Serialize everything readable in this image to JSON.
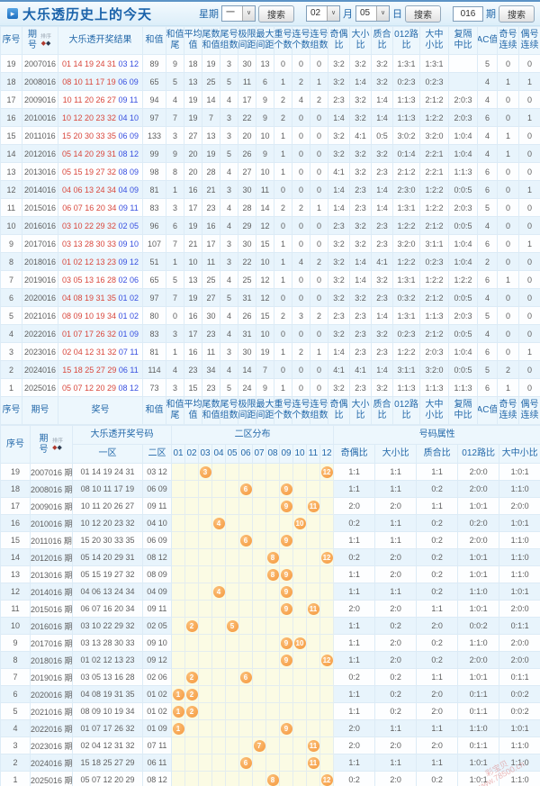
{
  "title": "大乐透历史上的今天",
  "sort_label": "排序",
  "controls": {
    "week_label": "星期",
    "week_value": "一",
    "month_value": "02",
    "month_label": "月",
    "day_value": "05",
    "day_label": "日",
    "issue_value": "016",
    "issue_label": "期",
    "search_label": "搜索"
  },
  "colors": {
    "accent": "#2368A9",
    "red_number": "#D9473C",
    "blue_number": "#3850E0",
    "ball_orange": "#F5973C",
    "dist_bg": "#FBFBE4",
    "header_bg": "#EDF7FD",
    "row_alt": "#E8F4FC"
  },
  "table1": {
    "headers": [
      {
        "lines": [
          "序号"
        ]
      },
      {
        "lines": [
          "期",
          "号"
        ],
        "sort": true
      },
      {
        "lines": [
          "大乐透开奖结果"
        ]
      },
      {
        "lines": [
          "和值"
        ]
      },
      {
        "lines": [
          "和值",
          "尾"
        ]
      },
      {
        "lines": [
          "平均",
          "值"
        ]
      },
      {
        "lines": [
          "尾数",
          "和值"
        ]
      },
      {
        "lines": [
          "尾号",
          "组数"
        ]
      },
      {
        "lines": [
          "极限",
          "间距"
        ]
      },
      {
        "lines": [
          "最大",
          "间距"
        ]
      },
      {
        "lines": [
          "重号",
          "个数"
        ]
      },
      {
        "lines": [
          "连号",
          "个数"
        ]
      },
      {
        "lines": [
          "连号",
          "组数"
        ]
      },
      {
        "lines": [
          "奇偶",
          "比"
        ]
      },
      {
        "lines": [
          "大小",
          "比"
        ]
      },
      {
        "lines": [
          "质合",
          "比"
        ]
      },
      {
        "lines": [
          "012路",
          "比"
        ]
      },
      {
        "lines": [
          "大中",
          "小比"
        ]
      },
      {
        "lines": [
          "复隔",
          "中比"
        ]
      },
      {
        "lines": [
          "AC值"
        ]
      },
      {
        "lines": [
          "奇号",
          "连续"
        ]
      },
      {
        "lines": [
          "偶号",
          "连续"
        ]
      }
    ],
    "footer_headers": [
      {
        "lines": [
          "序号"
        ]
      },
      {
        "lines": [
          "期号"
        ]
      },
      {
        "lines": [
          "奖号"
        ]
      },
      {
        "lines": [
          "和值"
        ]
      },
      {
        "lines": [
          "和值",
          "尾"
        ]
      },
      {
        "lines": [
          "平均",
          "值"
        ]
      },
      {
        "lines": [
          "尾数",
          "和值"
        ]
      },
      {
        "lines": [
          "尾号",
          "组数"
        ]
      },
      {
        "lines": [
          "极限",
          "间距"
        ]
      },
      {
        "lines": [
          "最大",
          "间距"
        ]
      },
      {
        "lines": [
          "重号",
          "个数"
        ]
      },
      {
        "lines": [
          "连号",
          "个数"
        ]
      },
      {
        "lines": [
          "连号",
          "组数"
        ]
      },
      {
        "lines": [
          "奇偶",
          "比"
        ]
      },
      {
        "lines": [
          "大小",
          "比"
        ]
      },
      {
        "lines": [
          "质合",
          "比"
        ]
      },
      {
        "lines": [
          "012路",
          "比"
        ]
      },
      {
        "lines": [
          "大中",
          "小比"
        ]
      },
      {
        "lines": [
          "复隔",
          "中比"
        ]
      },
      {
        "lines": [
          "AC值"
        ]
      },
      {
        "lines": [
          "奇号",
          "连续"
        ]
      },
      {
        "lines": [
          "偶号",
          "连续"
        ]
      }
    ],
    "rows": [
      {
        "seq": "19",
        "issue": "2007016",
        "front": "01 14 19 24 31",
        "back": "03 12",
        "stats": [
          "89",
          "9",
          "18",
          "19",
          "3",
          "30",
          "13",
          "0",
          "0",
          "0",
          "3:2",
          "3:2",
          "3:2",
          "1:3:1",
          "1:3:1",
          "",
          "5",
          "0",
          "0"
        ]
      },
      {
        "seq": "18",
        "issue": "2008016",
        "front": "08 10 11 17 19",
        "back": "06 09",
        "stats": [
          "65",
          "5",
          "13",
          "25",
          "5",
          "11",
          "6",
          "1",
          "2",
          "1",
          "3:2",
          "1:4",
          "3:2",
          "0:2:3",
          "0:2:3",
          "",
          "4",
          "1",
          "1"
        ]
      },
      {
        "seq": "17",
        "issue": "2009016",
        "front": "10 11 20 26 27",
        "back": "09 11",
        "stats": [
          "94",
          "4",
          "19",
          "14",
          "4",
          "17",
          "9",
          "2",
          "4",
          "2",
          "2:3",
          "3:2",
          "1:4",
          "1:1:3",
          "2:1:2",
          "2:0:3",
          "4",
          "0",
          "0"
        ]
      },
      {
        "seq": "16",
        "issue": "2010016",
        "front": "10 12 20 23 32",
        "back": "04 10",
        "stats": [
          "97",
          "7",
          "19",
          "7",
          "3",
          "22",
          "9",
          "2",
          "0",
          "0",
          "1:4",
          "3:2",
          "1:4",
          "1:1:3",
          "1:2:2",
          "2:0:3",
          "6",
          "0",
          "1"
        ]
      },
      {
        "seq": "15",
        "issue": "2011016",
        "front": "15 20 30 33 35",
        "back": "06 09",
        "stats": [
          "133",
          "3",
          "27",
          "13",
          "3",
          "20",
          "10",
          "1",
          "0",
          "0",
          "3:2",
          "4:1",
          "0:5",
          "3:0:2",
          "3:2:0",
          "1:0:4",
          "4",
          "1",
          "0"
        ]
      },
      {
        "seq": "14",
        "issue": "2012016",
        "front": "05 14 20 29 31",
        "back": "08 12",
        "stats": [
          "99",
          "9",
          "20",
          "19",
          "5",
          "26",
          "9",
          "1",
          "0",
          "0",
          "3:2",
          "3:2",
          "3:2",
          "0:1:4",
          "2:2:1",
          "1:0:4",
          "4",
          "1",
          "0"
        ]
      },
      {
        "seq": "13",
        "issue": "2013016",
        "front": "05 15 19 27 32",
        "back": "08 09",
        "stats": [
          "98",
          "8",
          "20",
          "28",
          "4",
          "27",
          "10",
          "1",
          "0",
          "0",
          "4:1",
          "3:2",
          "2:3",
          "2:1:2",
          "2:2:1",
          "1:1:3",
          "6",
          "0",
          "0"
        ]
      },
      {
        "seq": "12",
        "issue": "2014016",
        "front": "04 06 13 24 34",
        "back": "04 09",
        "stats": [
          "81",
          "1",
          "16",
          "21",
          "3",
          "30",
          "11",
          "0",
          "0",
          "0",
          "1:4",
          "2:3",
          "1:4",
          "2:3:0",
          "1:2:2",
          "0:0:5",
          "6",
          "0",
          "1"
        ]
      },
      {
        "seq": "11",
        "issue": "2015016",
        "front": "06 07 16 20 34",
        "back": "09 11",
        "stats": [
          "83",
          "3",
          "17",
          "23",
          "4",
          "28",
          "14",
          "2",
          "2",
          "1",
          "1:4",
          "2:3",
          "1:4",
          "1:3:1",
          "1:2:2",
          "2:0:3",
          "5",
          "0",
          "0"
        ]
      },
      {
        "seq": "10",
        "issue": "2016016",
        "front": "03 10 22 29 32",
        "back": "02 05",
        "stats": [
          "96",
          "6",
          "19",
          "16",
          "4",
          "29",
          "12",
          "0",
          "0",
          "0",
          "2:3",
          "3:2",
          "2:3",
          "1:2:2",
          "2:1:2",
          "0:0:5",
          "4",
          "0",
          "0"
        ]
      },
      {
        "seq": "9",
        "issue": "2017016",
        "front": "03 13 28 30 33",
        "back": "09 10",
        "stats": [
          "107",
          "7",
          "21",
          "17",
          "3",
          "30",
          "15",
          "1",
          "0",
          "0",
          "3:2",
          "3:2",
          "2:3",
          "3:2:0",
          "3:1:1",
          "1:0:4",
          "6",
          "0",
          "1"
        ]
      },
      {
        "seq": "8",
        "issue": "2018016",
        "front": "01 02 12 13 23",
        "back": "09 12",
        "stats": [
          "51",
          "1",
          "10",
          "11",
          "3",
          "22",
          "10",
          "1",
          "4",
          "2",
          "3:2",
          "1:4",
          "4:1",
          "1:2:2",
          "0:2:3",
          "1:0:4",
          "2",
          "0",
          "0"
        ]
      },
      {
        "seq": "7",
        "issue": "2019016",
        "front": "03 05 13 16 28",
        "back": "02 06",
        "stats": [
          "65",
          "5",
          "13",
          "25",
          "4",
          "25",
          "12",
          "1",
          "0",
          "0",
          "3:2",
          "1:4",
          "3:2",
          "1:3:1",
          "1:2:2",
          "1:2:2",
          "6",
          "1",
          "0"
        ]
      },
      {
        "seq": "6",
        "issue": "2020016",
        "front": "04 08 19 31 35",
        "back": "01 02",
        "stats": [
          "97",
          "7",
          "19",
          "27",
          "5",
          "31",
          "12",
          "0",
          "0",
          "0",
          "3:2",
          "3:2",
          "2:3",
          "0:3:2",
          "2:1:2",
          "0:0:5",
          "4",
          "0",
          "0"
        ]
      },
      {
        "seq": "5",
        "issue": "2021016",
        "front": "08 09 10 19 34",
        "back": "01 02",
        "stats": [
          "80",
          "0",
          "16",
          "30",
          "4",
          "26",
          "15",
          "2",
          "3",
          "2",
          "2:3",
          "2:3",
          "1:4",
          "1:3:1",
          "1:1:3",
          "2:0:3",
          "5",
          "0",
          "0"
        ]
      },
      {
        "seq": "4",
        "issue": "2022016",
        "front": "01 07 17 26 32",
        "back": "01 09",
        "stats": [
          "83",
          "3",
          "17",
          "23",
          "4",
          "31",
          "10",
          "0",
          "0",
          "0",
          "3:2",
          "2:3",
          "3:2",
          "0:2:3",
          "2:1:2",
          "0:0:5",
          "4",
          "0",
          "0"
        ]
      },
      {
        "seq": "3",
        "issue": "2023016",
        "front": "02 04 12 31 32",
        "back": "07 11",
        "stats": [
          "81",
          "1",
          "16",
          "11",
          "3",
          "30",
          "19",
          "1",
          "2",
          "1",
          "1:4",
          "2:3",
          "2:3",
          "1:2:2",
          "2:0:3",
          "1:0:4",
          "6",
          "0",
          "1"
        ]
      },
      {
        "seq": "2",
        "issue": "2024016",
        "front": "15 18 25 27 29",
        "back": "06 11",
        "stats": [
          "114",
          "4",
          "23",
          "34",
          "4",
          "14",
          "7",
          "0",
          "0",
          "0",
          "4:1",
          "4:1",
          "1:4",
          "3:1:1",
          "3:2:0",
          "0:0:5",
          "5",
          "2",
          "0"
        ]
      },
      {
        "seq": "1",
        "issue": "2025016",
        "front": "05 07 12 20 29",
        "back": "08 12",
        "stats": [
          "73",
          "3",
          "15",
          "23",
          "5",
          "24",
          "9",
          "1",
          "0",
          "0",
          "3:2",
          "2:3",
          "3:2",
          "1:1:3",
          "1:1:3",
          "1:1:3",
          "6",
          "1",
          "0"
        ]
      }
    ]
  },
  "table2": {
    "seq_header": "序号",
    "issue_lines": [
      "期",
      "号"
    ],
    "group": {
      "result": "大乐透开奖号码",
      "dist": "二区分布",
      "attrs": "号码属性"
    },
    "zone1": "一区",
    "zone2": "二区",
    "dist_cols": [
      "01",
      "02",
      "03",
      "04",
      "05",
      "06",
      "07",
      "08",
      "09",
      "10",
      "11",
      "12"
    ],
    "ratio_cols": [
      "奇偶比",
      "大小比",
      "质合比",
      "012路比",
      "大中小比"
    ],
    "issue_suffix": "期",
    "rows": [
      {
        "seq": "19",
        "issue": "2007016",
        "front": "01 14 19 24 31",
        "back": "03 12",
        "balls": [
          3,
          12
        ],
        "ratios": [
          "1:1",
          "1:1",
          "1:1",
          "2:0:0",
          "1:0:1"
        ]
      },
      {
        "seq": "18",
        "issue": "2008016",
        "front": "08 10 11 17 19",
        "back": "06 09",
        "balls": [
          6,
          9
        ],
        "ratios": [
          "1:1",
          "1:1",
          "0:2",
          "2:0:0",
          "1:1:0"
        ]
      },
      {
        "seq": "17",
        "issue": "2009016",
        "front": "10 11 20 26 27",
        "back": "09 11",
        "balls": [
          9,
          11
        ],
        "ratios": [
          "2:0",
          "2:0",
          "1:1",
          "1:0:1",
          "2:0:0"
        ]
      },
      {
        "seq": "16",
        "issue": "2010016",
        "front": "10 12 20 23 32",
        "back": "04 10",
        "balls": [
          4,
          10
        ],
        "ratios": [
          "0:2",
          "1:1",
          "0:2",
          "0:2:0",
          "1:0:1"
        ]
      },
      {
        "seq": "15",
        "issue": "2011016",
        "front": "15 20 30 33 35",
        "back": "06 09",
        "balls": [
          6,
          9
        ],
        "ratios": [
          "1:1",
          "1:1",
          "0:2",
          "2:0:0",
          "1:1:0"
        ]
      },
      {
        "seq": "14",
        "issue": "2012016",
        "front": "05 14 20 29 31",
        "back": "08 12",
        "balls": [
          8,
          12
        ],
        "ratios": [
          "0:2",
          "2:0",
          "0:2",
          "1:0:1",
          "1:1:0"
        ]
      },
      {
        "seq": "13",
        "issue": "2013016",
        "front": "05 15 19 27 32",
        "back": "08 09",
        "balls": [
          8,
          9
        ],
        "ratios": [
          "1:1",
          "2:0",
          "0:2",
          "1:0:1",
          "1:1:0"
        ]
      },
      {
        "seq": "12",
        "issue": "2014016",
        "front": "04 06 13 24 34",
        "back": "04 09",
        "balls": [
          4,
          9
        ],
        "ratios": [
          "1:1",
          "1:1",
          "0:2",
          "1:1:0",
          "1:0:1"
        ]
      },
      {
        "seq": "11",
        "issue": "2015016",
        "front": "06 07 16 20 34",
        "back": "09 11",
        "balls": [
          9,
          11
        ],
        "ratios": [
          "2:0",
          "2:0",
          "1:1",
          "1:0:1",
          "2:0:0"
        ]
      },
      {
        "seq": "10",
        "issue": "2016016",
        "front": "03 10 22 29 32",
        "back": "02 05",
        "balls": [
          2,
          5
        ],
        "ratios": [
          "1:1",
          "0:2",
          "2:0",
          "0:0:2",
          "0:1:1"
        ]
      },
      {
        "seq": "9",
        "issue": "2017016",
        "front": "03 13 28 30 33",
        "back": "09 10",
        "balls": [
          9,
          10
        ],
        "ratios": [
          "1:1",
          "2:0",
          "0:2",
          "1:1:0",
          "2:0:0"
        ]
      },
      {
        "seq": "8",
        "issue": "2018016",
        "front": "01 02 12 13 23",
        "back": "09 12",
        "balls": [
          9,
          12
        ],
        "ratios": [
          "1:1",
          "2:0",
          "0:2",
          "2:0:0",
          "2:0:0"
        ]
      },
      {
        "seq": "7",
        "issue": "2019016",
        "front": "03 05 13 16 28",
        "back": "02 06",
        "balls": [
          2,
          6
        ],
        "ratios": [
          "0:2",
          "0:2",
          "1:1",
          "1:0:1",
          "0:1:1"
        ]
      },
      {
        "seq": "6",
        "issue": "2020016",
        "front": "04 08 19 31 35",
        "back": "01 02",
        "balls": [
          1,
          2
        ],
        "ratios": [
          "1:1",
          "0:2",
          "2:0",
          "0:1:1",
          "0:0:2"
        ]
      },
      {
        "seq": "5",
        "issue": "2021016",
        "front": "08 09 10 19 34",
        "back": "01 02",
        "balls": [
          1,
          2
        ],
        "ratios": [
          "1:1",
          "0:2",
          "2:0",
          "0:1:1",
          "0:0:2"
        ]
      },
      {
        "seq": "4",
        "issue": "2022016",
        "front": "01 07 17 26 32",
        "back": "01 09",
        "balls": [
          1,
          9
        ],
        "ratios": [
          "2:0",
          "1:1",
          "1:1",
          "1:1:0",
          "1:0:1"
        ]
      },
      {
        "seq": "3",
        "issue": "2023016",
        "front": "02 04 12 31 32",
        "back": "07 11",
        "balls": [
          7,
          11
        ],
        "ratios": [
          "2:0",
          "2:0",
          "2:0",
          "0:1:1",
          "1:1:0"
        ]
      },
      {
        "seq": "2",
        "issue": "2024016",
        "front": "15 18 25 27 29",
        "back": "06 11",
        "balls": [
          6,
          11
        ],
        "ratios": [
          "1:1",
          "1:1",
          "1:1",
          "1:0:1",
          "1:1:0"
        ]
      },
      {
        "seq": "1",
        "issue": "2025016",
        "front": "05 07 12 20 29",
        "back": "08 12",
        "balls": [
          8,
          12
        ],
        "ratios": [
          "0:2",
          "2:0",
          "0:2",
          "1:0:1",
          "1:1:0"
        ]
      }
    ]
  },
  "watermark": {
    "line1": "彩宝贝",
    "line2": "www.78500.cn"
  }
}
